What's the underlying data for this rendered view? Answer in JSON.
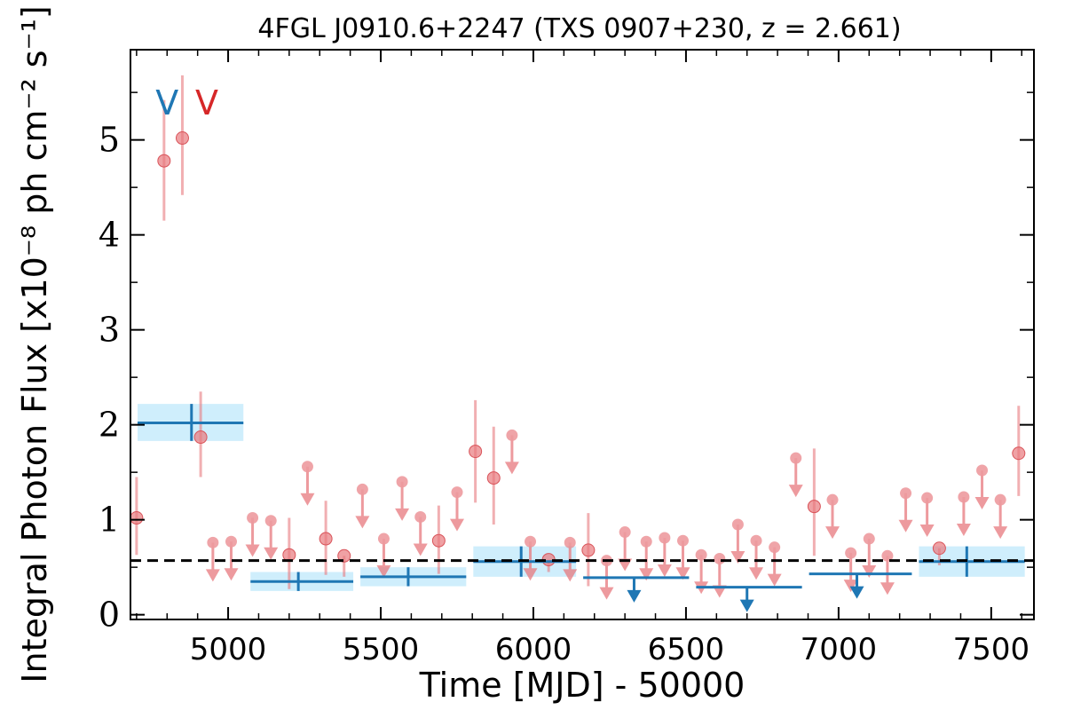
{
  "chart_data": {
    "type": "scatter",
    "title": "4FGL J0910.6+2247 (TXS 0907+230, z = 2.661)",
    "xlabel": "Time [MJD] - 50000",
    "ylabel": "Integral Photon Flux [x10⁻⁸ ph cm⁻² s⁻¹]",
    "xlim": [
      4680,
      7640
    ],
    "ylim": [
      -0.05,
      5.95
    ],
    "x_ticks": [
      "5000",
      "5500",
      "6000",
      "6500",
      "7000",
      "7500"
    ],
    "x_tick_values": [
      5000,
      5500,
      6000,
      6500,
      7000,
      7500
    ],
    "y_ticks": [
      "0",
      "1",
      "2",
      "3",
      "4",
      "5"
    ],
    "y_tick_values": [
      0,
      1,
      2,
      3,
      4,
      5
    ],
    "mean_flux": 0.57,
    "annotations": [
      {
        "text": "V",
        "x": 4800,
        "y": 5.4,
        "color": "#1f77b4"
      },
      {
        "text": "V",
        "x": 4930,
        "y": 5.4,
        "color": "#d62728"
      }
    ],
    "colors": {
      "fine_series": "#e8797e",
      "coarse_series": "#1f77b4",
      "coarse_band": "#cfeefc",
      "mean_line": "#000000"
    },
    "series": [
      {
        "name": "",
        "color": "#e8797e",
        "detections": [
          {
            "x": 4700,
            "y": 1.02,
            "lo": 0.63,
            "hi": 1.45
          },
          {
            "x": 4790,
            "y": 4.78,
            "lo": 4.15,
            "hi": 5.42
          },
          {
            "x": 4850,
            "y": 5.02,
            "lo": 4.42,
            "hi": 5.68
          },
          {
            "x": 4910,
            "y": 1.87,
            "lo": 1.45,
            "hi": 2.35
          },
          {
            "x": 5200,
            "y": 0.63,
            "lo": 0.27,
            "hi": 1.02
          },
          {
            "x": 5320,
            "y": 0.8,
            "lo": 0.42,
            "hi": 1.2
          },
          {
            "x": 5380,
            "y": 0.62,
            "lo": 0.4,
            "hi": 0.62
          },
          {
            "x": 5690,
            "y": 0.78,
            "lo": 0.43,
            "hi": 1.15
          },
          {
            "x": 5810,
            "y": 1.72,
            "lo": 1.18,
            "hi": 2.26
          },
          {
            "x": 5870,
            "y": 1.44,
            "lo": 0.95,
            "hi": 1.98
          },
          {
            "x": 6050,
            "y": 0.58,
            "lo": 0.45,
            "hi": 0.58
          },
          {
            "x": 6180,
            "y": 0.68,
            "lo": 0.3,
            "hi": 1.07
          },
          {
            "x": 6920,
            "y": 1.14,
            "lo": 0.62,
            "hi": 1.75
          },
          {
            "x": 7330,
            "y": 0.7,
            "lo": 0.52,
            "hi": 0.7
          },
          {
            "x": 7590,
            "y": 1.7,
            "lo": 1.25,
            "hi": 2.2
          }
        ],
        "upper_limits": [
          {
            "x": 4950,
            "y": 0.76
          },
          {
            "x": 5010,
            "y": 0.77
          },
          {
            "x": 5080,
            "y": 1.02
          },
          {
            "x": 5140,
            "y": 0.99
          },
          {
            "x": 5260,
            "y": 1.56
          },
          {
            "x": 5440,
            "y": 1.32
          },
          {
            "x": 5510,
            "y": 0.8
          },
          {
            "x": 5570,
            "y": 1.4
          },
          {
            "x": 5630,
            "y": 1.03
          },
          {
            "x": 5750,
            "y": 1.29
          },
          {
            "x": 5930,
            "y": 1.89
          },
          {
            "x": 5990,
            "y": 0.77
          },
          {
            "x": 6120,
            "y": 0.76
          },
          {
            "x": 6240,
            "y": 0.57
          },
          {
            "x": 6300,
            "y": 0.87
          },
          {
            "x": 6370,
            "y": 0.77
          },
          {
            "x": 6430,
            "y": 0.81
          },
          {
            "x": 6490,
            "y": 0.78
          },
          {
            "x": 6550,
            "y": 0.63
          },
          {
            "x": 6610,
            "y": 0.59
          },
          {
            "x": 6670,
            "y": 0.95
          },
          {
            "x": 6730,
            "y": 0.78
          },
          {
            "x": 6790,
            "y": 0.71
          },
          {
            "x": 6860,
            "y": 1.65
          },
          {
            "x": 6980,
            "y": 1.21
          },
          {
            "x": 7040,
            "y": 0.65
          },
          {
            "x": 7100,
            "y": 0.8
          },
          {
            "x": 7160,
            "y": 0.62
          },
          {
            "x": 7220,
            "y": 1.28
          },
          {
            "x": 7290,
            "y": 1.23
          },
          {
            "x": 7410,
            "y": 1.24
          },
          {
            "x": 7470,
            "y": 1.52
          },
          {
            "x": 7530,
            "y": 1.21
          }
        ]
      },
      {
        "name": "",
        "color": "#1f77b4",
        "bins": [
          {
            "x0": 4680,
            "x1": 5050,
            "xc": 4880,
            "y": 2.02,
            "lo": 1.83,
            "hi": 2.22,
            "upper_limit": false
          },
          {
            "x0": 5050,
            "x1": 5410,
            "xc": 5230,
            "y": 0.35,
            "lo": 0.25,
            "hi": 0.45,
            "upper_limit": false
          },
          {
            "x0": 5410,
            "x1": 5780,
            "xc": 5590,
            "y": 0.4,
            "lo": 0.3,
            "hi": 0.5,
            "upper_limit": false
          },
          {
            "x0": 5780,
            "x1": 6140,
            "xc": 5960,
            "y": 0.56,
            "lo": 0.4,
            "hi": 0.72,
            "upper_limit": false
          },
          {
            "x0": 6140,
            "x1": 6510,
            "xc": 6330,
            "y": 0.39,
            "upper_limit": true
          },
          {
            "x0": 6510,
            "x1": 6880,
            "xc": 6700,
            "y": 0.29,
            "upper_limit": true
          },
          {
            "x0": 6880,
            "x1": 7240,
            "xc": 7060,
            "y": 0.43,
            "upper_limit": true
          },
          {
            "x0": 7240,
            "x1": 7610,
            "xc": 7420,
            "y": 0.56,
            "lo": 0.4,
            "hi": 0.72,
            "upper_limit": false
          }
        ]
      }
    ]
  }
}
